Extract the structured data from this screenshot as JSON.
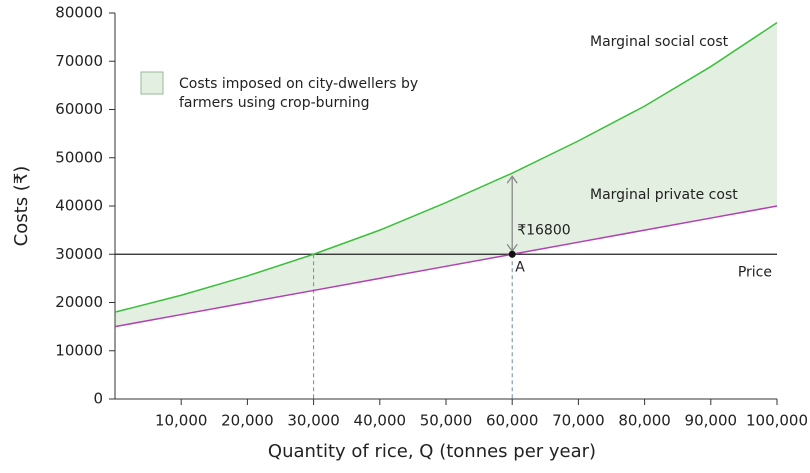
{
  "chart_data": {
    "type": "line",
    "x_label": "Quantity of rice, Q (tonnes per year)",
    "y_label": "Costs (₹)",
    "x": [
      0,
      10000,
      20000,
      30000,
      40000,
      50000,
      60000,
      70000,
      80000,
      90000,
      100000
    ],
    "series": [
      {
        "name": "Marginal social cost",
        "color": "#3cbf3c",
        "values": [
          18000,
          21500,
          25500,
          30000,
          35000,
          40700,
          46800,
          53500,
          60700,
          68900,
          78000
        ]
      },
      {
        "name": "Marginal private cost",
        "color": "#b23fb3",
        "values": [
          15000,
          17500,
          20000,
          22500,
          25000,
          27500,
          30000,
          32500,
          35000,
          37500,
          40000
        ]
      }
    ],
    "shaded_area": {
      "label_lines": [
        "Costs imposed on city-dwellers by",
        "farmers using crop-burning"
      ],
      "color": "#e3f0e1"
    },
    "price_line": {
      "label": "Price",
      "value": 30000
    },
    "point": {
      "label": "A",
      "x": 60000,
      "y": 30000
    },
    "annotation": {
      "label": "₹16800",
      "x": 60000,
      "from": 30000,
      "to": 46800
    },
    "guides": [
      30000,
      60000
    ],
    "xlim": [
      0,
      100000
    ],
    "xticks": [
      {
        "value": 10000,
        "label": "10,000"
      },
      {
        "value": 20000,
        "label": "20,000"
      },
      {
        "value": 30000,
        "label": "30,000"
      },
      {
        "value": 40000,
        "label": "40,000"
      },
      {
        "value": 50000,
        "label": "50,000"
      },
      {
        "value": 60000,
        "label": "60,000"
      },
      {
        "value": 70000,
        "label": "70,000"
      },
      {
        "value": 80000,
        "label": "80,000"
      },
      {
        "value": 90000,
        "label": "90,000"
      },
      {
        "value": 100000,
        "label": "100,000"
      }
    ],
    "ylim": [
      0,
      80000
    ],
    "yticks": [
      0,
      10000,
      20000,
      30000,
      40000,
      50000,
      60000,
      70000,
      80000
    ],
    "grid": false
  }
}
